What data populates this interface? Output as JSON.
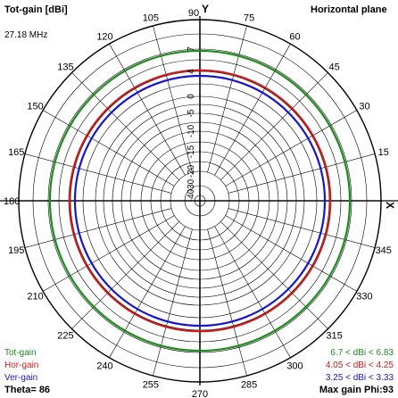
{
  "header": {
    "title": "Tot-gain [dBi]",
    "plane": "Horizontal plane",
    "frequency": "27.18 MHz"
  },
  "footer": {
    "legend": [
      "Tot-gain",
      "Hor-gain",
      "Ver-gain"
    ],
    "theta_label": "Theta= 86",
    "max_gain_label": "Max gain Phi:93",
    "ranges": [
      "6.7 < dBi < 6.83",
      "4.05 < dBi < 4.25",
      "3.25 < dBi < 3.33"
    ]
  },
  "colors": {
    "tot": "#1f8a1f",
    "hor": "#cc1b1b",
    "ver": "#1717c8",
    "grid": "#000000"
  },
  "chart_data": {
    "type": "polar",
    "title": "Tot-gain [dBi]",
    "angle_ticks": [
      0,
      15,
      30,
      45,
      60,
      75,
      90,
      105,
      120,
      135,
      150,
      165,
      180,
      195,
      210,
      225,
      240,
      255,
      270,
      285,
      300,
      315,
      330,
      345
    ],
    "angle_tick_labels": [
      "",
      "15",
      "30",
      "45",
      "60",
      "75",
      "90",
      "105",
      "120",
      "135",
      "150",
      "165",
      "180",
      "195",
      "210",
      "225",
      "240",
      "255",
      "270",
      "285",
      "300",
      "315",
      "330",
      "345"
    ],
    "axis_labels": {
      "x": "X",
      "y": "Y"
    },
    "radial_ticks": [
      7,
      4,
      0,
      -5,
      -10,
      -15,
      -20,
      -30,
      -40
    ],
    "radial_tick_labels": [
      "7",
      "4",
      "0",
      "-5",
      "-10",
      "-15",
      "-20",
      "-30",
      "-40"
    ],
    "series": [
      {
        "name": "Tot-gain",
        "min": 6.7,
        "max": 6.83
      },
      {
        "name": "Hor-gain",
        "min": 4.05,
        "max": 4.25
      },
      {
        "name": "Ver-gain",
        "min": 3.25,
        "max": 3.33
      }
    ]
  }
}
